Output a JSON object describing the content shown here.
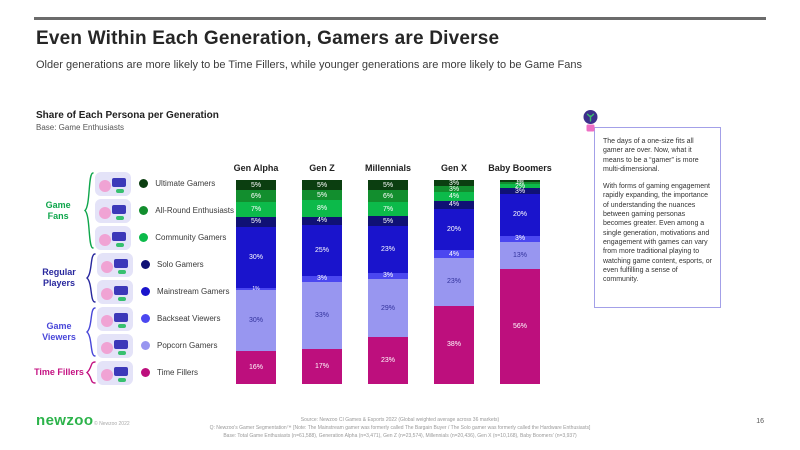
{
  "slide": {
    "title": "Even Within Each Generation, Gamers are Diverse",
    "subtitle": "Older generations are more likely to be Time Fillers, while younger generations are more likely to be Game Fans"
  },
  "chart_header": {
    "title": "Share of Each Persona per Generation",
    "base": "Base: Game Enthusiasts"
  },
  "legend": {
    "groups": [
      {
        "label": "Game Fans",
        "color": "#0FA64C",
        "items": [
          {
            "label": "Ultimate Gamers",
            "color": "#0B3E10"
          },
          {
            "label": "All-Round Enthusiasts",
            "color": "#128E2E"
          },
          {
            "label": "Community Gamers",
            "color": "#0CBA4A"
          }
        ]
      },
      {
        "label": "Regular Players",
        "color": "#29289E",
        "items": [
          {
            "label": "Solo Gamers",
            "color": "#101175"
          },
          {
            "label": "Mainstream Gamers",
            "color": "#1A14CC"
          }
        ]
      },
      {
        "label": "Game Viewers",
        "color": "#4947D9",
        "items": [
          {
            "label": "Backseat Viewers",
            "color": "#4B47F0"
          },
          {
            "label": "Popcorn Gamers",
            "color": "#9896F0"
          }
        ]
      },
      {
        "label": "Time Fillers",
        "color": "#C41282",
        "items": [
          {
            "label": "Time Fillers",
            "color": "#BD0F7D"
          }
        ]
      }
    ]
  },
  "chart_data": {
    "type": "bar",
    "stacked": true,
    "value_suffix": "%",
    "categories": [
      "Gen Alpha",
      "Gen Z",
      "Millennials",
      "Gen X",
      "Baby Boomers"
    ],
    "series": [
      {
        "name": "Ultimate Gamers",
        "color": "#0B3E10",
        "values": [
          5,
          5,
          5,
          3,
          1
        ]
      },
      {
        "name": "All-Round Enthusiasts",
        "color": "#128E2E",
        "values": [
          6,
          5,
          6,
          3,
          1
        ]
      },
      {
        "name": "Community Gamers",
        "color": "#0CBA4A",
        "values": [
          7,
          8,
          7,
          4,
          2
        ]
      },
      {
        "name": "Solo Gamers",
        "color": "#101175",
        "values": [
          5,
          4,
          5,
          4,
          3
        ]
      },
      {
        "name": "Mainstream Gamers",
        "color": "#1A14CC",
        "values": [
          30,
          25,
          23,
          20,
          20
        ]
      },
      {
        "name": "Backseat Viewers",
        "color": "#4B47F0",
        "values": [
          1,
          3,
          3,
          4,
          3
        ]
      },
      {
        "name": "Popcorn Gamers",
        "color": "#9896F0",
        "label_color": "#32329B",
        "values": [
          30,
          33,
          29,
          23,
          13
        ]
      },
      {
        "name": "Time Fillers",
        "color": "#BD0F7D",
        "values": [
          16,
          17,
          23,
          38,
          56
        ]
      }
    ]
  },
  "note": {
    "paragraphs": [
      "The days of a one-size fits all gamer are over. Now, what it means to be a “gamer” is more multi-dimensional.",
      "With forms of gaming engagement rapidly expanding, the importance of understanding the nuances between gaming personas becomes greater. Even among a single generation, motivations and engagement with games can vary from more traditional playing to watching game content, esports, or even fulfilling a sense of community."
    ]
  },
  "footer": {
    "logo": "newzoo",
    "copyright": "© Newzoo 2022",
    "source_lines": [
      "Source: Newzoo CI Games & Esports 2022 (Global weighted average across 36 markets)",
      "Q: Newzoo's Gamer Segmentation™ [Note: The Mainstream gamer was formerly called The Bargain Buyer / The Solo gamer was formerly called the Hardware Enthusiasts]",
      "Base: Total Game Enthusiasts (n=61,588), Generation Alpha (n=3,471), Gen Z (n=23,574), Millennials (n=20,436), Gen X (n=10,168), Baby Boomers' (n=3,937)"
    ],
    "page": "16"
  }
}
